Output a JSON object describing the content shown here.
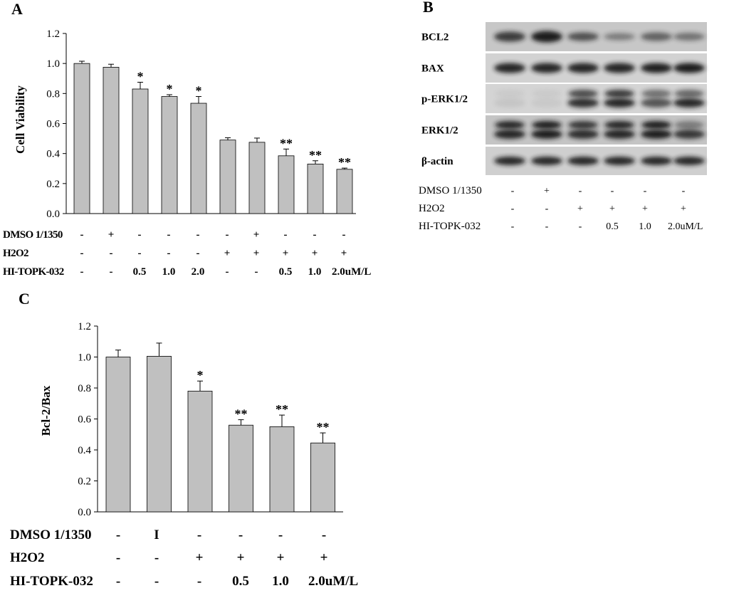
{
  "panels": {
    "A": {
      "letter": "A",
      "chart_data": {
        "type": "bar",
        "title": "",
        "ylabel": "Cell Viability",
        "ylim": [
          0,
          1.2
        ],
        "yticks": [
          "0.0",
          "0.2",
          "0.4",
          "0.6",
          "0.8",
          "1.0",
          "1.2"
        ],
        "values": [
          1.0,
          0.975,
          0.83,
          0.78,
          0.735,
          0.49,
          0.475,
          0.385,
          0.33,
          0.295
        ],
        "errors": [
          0.015,
          0.02,
          0.045,
          0.012,
          0.045,
          0.015,
          0.028,
          0.045,
          0.022,
          0.008
        ],
        "significance": [
          "",
          "",
          "*",
          "*",
          "*",
          "",
          "",
          "**",
          "**",
          "**"
        ],
        "bar_color": "#c0c0c0"
      },
      "conditions": [
        {
          "label": "DMSO 1/1350",
          "cells": [
            "-",
            "+",
            "-",
            "-",
            "-",
            "-",
            "+",
            "-",
            "-",
            "-"
          ]
        },
        {
          "label": "H2O2",
          "cells": [
            "-",
            "-",
            "-",
            "-",
            "-",
            "+",
            "+",
            "+",
            "+",
            "+"
          ]
        },
        {
          "label": "HI-TOPK-032",
          "cells": [
            "-",
            "-",
            "0.5",
            "1.0",
            "2.0",
            "-",
            "-",
            "0.5",
            "1.0",
            "2.0uM/L"
          ]
        }
      ]
    },
    "B": {
      "letter": "B",
      "blot_rows": [
        "BCL2",
        "BAX",
        "p-ERK1/2",
        "ERK1/2",
        "β-actin"
      ],
      "conditions": [
        {
          "label": "DMSO 1/1350",
          "cells": [
            "-",
            "+",
            "-",
            "-",
            "-",
            "-"
          ]
        },
        {
          "label": "H2O2",
          "cells": [
            "-",
            "-",
            "+",
            "+",
            "+",
            "+"
          ]
        },
        {
          "label": "HI-TOPK-032",
          "cells": [
            "-",
            "-",
            "-",
            "0.5",
            "1.0",
            "2.0uM/L"
          ]
        }
      ]
    },
    "C": {
      "letter": "C",
      "chart_data": {
        "type": "bar",
        "title": "",
        "ylabel": "Bcl-2/Bax",
        "ylim": [
          0,
          1.2
        ],
        "yticks": [
          "0.0",
          "0.2",
          "0.4",
          "0.6",
          "0.8",
          "1.0",
          "1.2"
        ],
        "values": [
          1.0,
          1.005,
          0.78,
          0.56,
          0.55,
          0.445
        ],
        "errors": [
          0.045,
          0.085,
          0.065,
          0.035,
          0.075,
          0.065
        ],
        "significance": [
          "",
          "",
          "*",
          "**",
          "**",
          "**"
        ],
        "bar_color": "#c0c0c0"
      },
      "conditions": [
        {
          "label": "DMSO 1/1350",
          "cells": [
            "-",
            "I",
            "-",
            "-",
            "-",
            "-"
          ]
        },
        {
          "label": "H2O2",
          "cells": [
            "-",
            "-",
            "+",
            "+",
            "+",
            "+"
          ]
        },
        {
          "label": "HI-TOPK-032",
          "cells": [
            "-",
            "-",
            "-",
            "0.5",
            "1.0",
            "2.0uM/L"
          ]
        }
      ]
    }
  }
}
